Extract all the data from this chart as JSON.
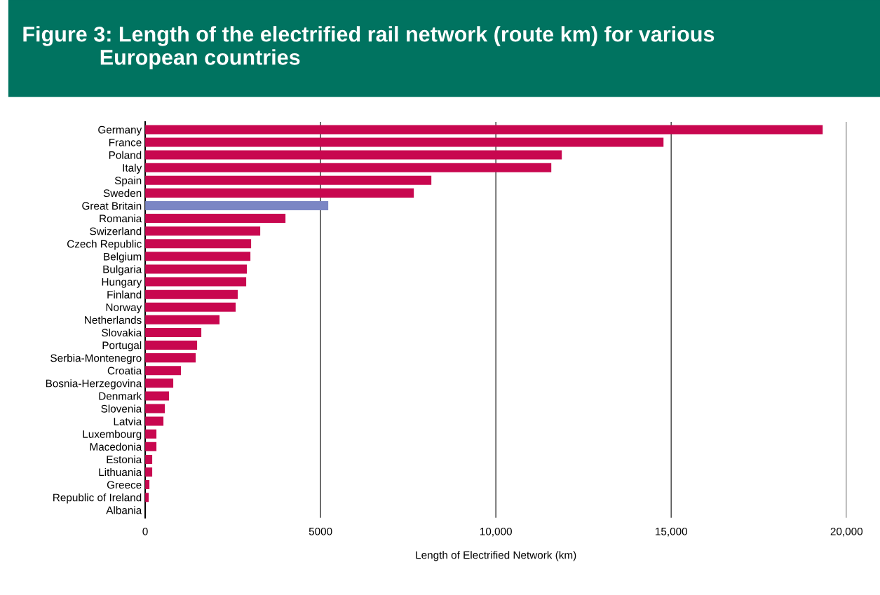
{
  "chart_data": {
    "type": "bar",
    "orientation": "horizontal",
    "title": "Figure 3: Length of the electrified rail network (route km) for various\n             European countries",
    "xlabel": "Length of Electrified Network (km)",
    "categories": [
      "Germany",
      "France",
      "Poland",
      "Italy",
      "Spain",
      "Sweden",
      "Great Britain",
      "Romania",
      "Swizerland",
      "Czech Republic",
      "Belgium",
      "Bulgaria",
      "Hungary",
      "Finland",
      "Norway",
      "Netherlands",
      "Slovakia",
      "Portugal",
      "Serbia-Montenegro",
      "Croatia",
      "Bosnia-Herzegovina",
      "Denmark",
      "Slovenia",
      "Latvia",
      "Luxembourg",
      "Macedonia",
      "Estonia",
      "Lithuania",
      "Greece",
      "Republic of Ireland",
      "Albania"
    ],
    "values": [
      19320,
      14780,
      11880,
      11580,
      8160,
      7660,
      5220,
      4000,
      3280,
      3020,
      3000,
      2900,
      2880,
      2640,
      2580,
      2120,
      1600,
      1480,
      1440,
      1020,
      800,
      680,
      560,
      520,
      320,
      320,
      200,
      200,
      120,
      100,
      0
    ],
    "colors": [
      "#c8074f",
      "#c8074f",
      "#c8074f",
      "#c8074f",
      "#c8074f",
      "#c8074f",
      "#7b86c4",
      "#c8074f",
      "#c8074f",
      "#c8074f",
      "#c8074f",
      "#c8074f",
      "#c8074f",
      "#c8074f",
      "#c8074f",
      "#c8074f",
      "#c8074f",
      "#c8074f",
      "#c8074f",
      "#c8074f",
      "#c8074f",
      "#c8074f",
      "#c8074f",
      "#c8074f",
      "#c8074f",
      "#c8074f",
      "#c8074f",
      "#c8074f",
      "#c8074f",
      "#c8074f",
      "#c8074f"
    ],
    "xlim": [
      0,
      20000
    ],
    "xticks": [
      0,
      5000,
      {
        "value": 10000,
        "label": "10,000"
      },
      {
        "value": 15000,
        "label": "15,000"
      },
      {
        "value": 20000,
        "label": "20,000"
      }
    ],
    "grid": "x",
    "legend": false
  }
}
